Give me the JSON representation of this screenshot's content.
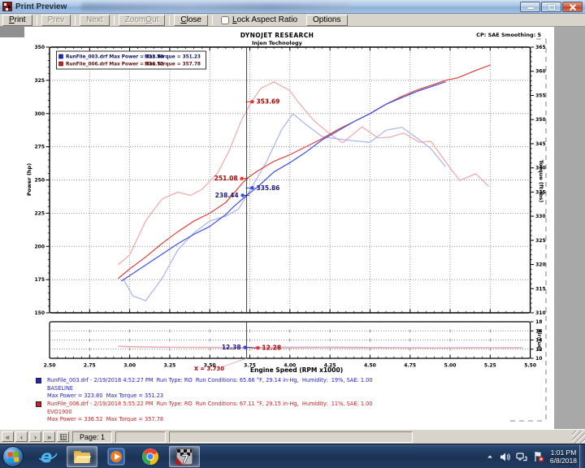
{
  "window": {
    "title": "Print Preview"
  },
  "toolbar": {
    "buttons": [
      {
        "label": "Print",
        "u": 0,
        "enabled": true
      },
      {
        "label": "Prev",
        "u": -1,
        "enabled": false
      },
      {
        "label": "Next",
        "u": -1,
        "enabled": false
      },
      {
        "label": "Zoom Out",
        "u": 5,
        "enabled": false
      },
      {
        "label": "Close",
        "u": 0,
        "enabled": true
      }
    ],
    "checkbox": {
      "label": "Lock Aspect Ratio",
      "u": 0,
      "checked": false
    },
    "options_label": "Options"
  },
  "header": {
    "brand": "DYNOJET RESEARCH",
    "subbrand": "Injen Technology",
    "note": "CP: SAE  Smoothing: 5"
  },
  "runs": [
    {
      "color": "#2222cc",
      "line1": "RunFile_003.drf - 2/19/2018 4:52:27 PM  Run Type: RO  Run Conditions: 65.66 °F, 29.14 in-Hg,  Humidity:  19%, SAE: 1.00",
      "line2": "BASELINE",
      "line3": "Max Power = 323.80  Max Torque = 351.23"
    },
    {
      "color": "#cc2020",
      "line1": "RunFile_006.drf - 2/19/2018 5:55:22 PM  Run Type: RO  Run Conditions: 67.11 °F, 29.15 in-Hg,  Humidity:  11%, SAE: 1.00",
      "line2": "EVO1900",
      "line3": "Max Power = 336.52  Max Torque = 357.78"
    }
  ],
  "statusbar": {
    "nav": [
      "«",
      "‹",
      "›",
      "»"
    ],
    "page_label": "Page: 1"
  },
  "taskbar": {
    "clock": {
      "time": "1:01 PM",
      "date": "6/8/2018"
    }
  },
  "chart_data": {
    "type": "line",
    "title": "DYNOJET RESEARCH",
    "subtitle": "Injen Technology",
    "corner_note": "CP: SAE  Smoothing: 5",
    "xlabel": "Engine Speed (RPM x1000)",
    "xlim": [
      2.5,
      5.5
    ],
    "x_tick_step": 0.25,
    "power_axis": {
      "label": "Power (hp)",
      "lim": [
        150,
        350
      ],
      "tick_step": 25
    },
    "torque_axis": {
      "label": "Torque (ft-lbs)",
      "lim": [
        310,
        365
      ],
      "tick_step": 5
    },
    "afr_axis": {
      "label": "Air/Fuel",
      "lim": [
        10,
        18
      ],
      "tick_step": 2
    },
    "grid": true,
    "legend_position": "top-left",
    "legend": [
      {
        "color": "#2222cc",
        "file": "RunFile_003.drf",
        "power_text": "Max Power = 323.80",
        "torque_text": "Max Torque = 351.23",
        "text_color": "#101060"
      },
      {
        "color": "#cc2020",
        "file": "RunFile_006.drf",
        "power_text": "Max Power = 336.52",
        "torque_text": "Max Torque = 357.78",
        "text_color": "#601010"
      }
    ],
    "cursor": {
      "x": 3.73,
      "label": "X = 3.730"
    },
    "series": [
      {
        "name": "runfile006-torque",
        "axis": "torque",
        "color": "#f2a6a6",
        "points": [
          [
            2.93,
            320
          ],
          [
            3.0,
            322
          ],
          [
            3.1,
            329
          ],
          [
            3.2,
            333.5
          ],
          [
            3.3,
            335
          ],
          [
            3.38,
            334.3
          ],
          [
            3.45,
            335.5
          ],
          [
            3.55,
            339
          ],
          [
            3.62,
            343.5
          ],
          [
            3.7,
            350
          ],
          [
            3.76,
            353.7
          ],
          [
            3.82,
            356.5
          ],
          [
            3.9,
            357.8
          ],
          [
            4.0,
            356
          ],
          [
            4.05,
            353.7
          ],
          [
            4.15,
            349.8
          ],
          [
            4.25,
            347
          ],
          [
            4.33,
            345.2
          ],
          [
            4.45,
            348.5
          ],
          [
            4.55,
            346.2
          ],
          [
            4.63,
            346.4
          ],
          [
            4.71,
            347.2
          ],
          [
            4.81,
            345.3
          ],
          [
            4.88,
            345.5
          ],
          [
            5.0,
            340
          ],
          [
            5.06,
            337.4
          ],
          [
            5.16,
            338.8
          ],
          [
            5.24,
            336.2
          ]
        ]
      },
      {
        "name": "runfile003-torque",
        "axis": "torque",
        "color": "#a8b2f2",
        "points": [
          [
            2.96,
            317
          ],
          [
            3.02,
            313.5
          ],
          [
            3.1,
            312.5
          ],
          [
            3.2,
            317
          ],
          [
            3.3,
            323
          ],
          [
            3.4,
            326.5
          ],
          [
            3.5,
            329
          ],
          [
            3.6,
            330
          ],
          [
            3.68,
            331.5
          ],
          [
            3.76,
            335.9
          ],
          [
            3.85,
            341
          ],
          [
            3.95,
            348
          ],
          [
            4.02,
            351.2
          ],
          [
            4.1,
            349
          ],
          [
            4.2,
            346.5
          ],
          [
            4.3,
            346
          ],
          [
            4.4,
            345.6
          ],
          [
            4.5,
            345.3
          ],
          [
            4.6,
            347.8
          ],
          [
            4.7,
            348.4
          ],
          [
            4.8,
            346
          ],
          [
            4.88,
            344
          ],
          [
            4.97,
            340.3
          ]
        ]
      },
      {
        "name": "runfile006-power",
        "axis": "power",
        "color": "#e03c3c",
        "points": [
          [
            2.93,
            176
          ],
          [
            3.0,
            183
          ],
          [
            3.1,
            192
          ],
          [
            3.2,
            202
          ],
          [
            3.3,
            211
          ],
          [
            3.4,
            219
          ],
          [
            3.5,
            225
          ],
          [
            3.6,
            233
          ],
          [
            3.7,
            247
          ],
          [
            3.73,
            251.1
          ],
          [
            3.8,
            257
          ],
          [
            3.9,
            264
          ],
          [
            4.0,
            269
          ],
          [
            4.1,
            275
          ],
          [
            4.2,
            281
          ],
          [
            4.3,
            288
          ],
          [
            4.4,
            294
          ],
          [
            4.5,
            300
          ],
          [
            4.6,
            307
          ],
          [
            4.7,
            313
          ],
          [
            4.8,
            318
          ],
          [
            4.9,
            322
          ],
          [
            4.97,
            325
          ],
          [
            5.05,
            327
          ],
          [
            5.15,
            332
          ],
          [
            5.25,
            336.5
          ]
        ]
      },
      {
        "name": "runfile003-power",
        "axis": "power",
        "color": "#3c50e0",
        "points": [
          [
            2.95,
            174
          ],
          [
            3.0,
            178
          ],
          [
            3.1,
            186
          ],
          [
            3.2,
            194
          ],
          [
            3.3,
            202
          ],
          [
            3.4,
            209
          ],
          [
            3.5,
            215
          ],
          [
            3.6,
            224
          ],
          [
            3.65,
            230
          ],
          [
            3.73,
            238.4
          ],
          [
            3.8,
            245
          ],
          [
            3.9,
            256
          ],
          [
            4.0,
            263
          ],
          [
            4.1,
            271
          ],
          [
            4.2,
            280
          ],
          [
            4.3,
            287
          ],
          [
            4.4,
            294
          ],
          [
            4.5,
            300
          ],
          [
            4.6,
            307
          ],
          [
            4.7,
            312
          ],
          [
            4.8,
            317
          ],
          [
            4.9,
            321
          ],
          [
            4.97,
            323.8
          ]
        ]
      },
      {
        "name": "runfile003-afr",
        "axis": "afr",
        "color": "#a8b2f2",
        "points": [
          [
            2.95,
            12.55
          ],
          [
            3.1,
            12.45
          ],
          [
            3.3,
            12.42
          ],
          [
            3.5,
            12.42
          ],
          [
            3.72,
            12.38
          ],
          [
            3.9,
            12.42
          ],
          [
            4.1,
            12.45
          ],
          [
            4.3,
            12.45
          ],
          [
            4.5,
            12.4
          ],
          [
            4.7,
            12.35
          ],
          [
            4.9,
            12.3
          ],
          [
            5.1,
            12.35
          ],
          [
            5.3,
            12.35
          ],
          [
            5.45,
            12.35
          ]
        ]
      },
      {
        "name": "runfile006-afr",
        "axis": "afr",
        "color": "#f2a6a6",
        "points": [
          [
            2.93,
            12.65
          ],
          [
            3.1,
            12.5
          ],
          [
            3.3,
            12.4
          ],
          [
            3.5,
            12.35
          ],
          [
            3.8,
            12.28
          ],
          [
            4.0,
            12.3
          ],
          [
            4.2,
            12.33
          ],
          [
            4.4,
            12.3
          ],
          [
            4.6,
            12.28
          ],
          [
            4.8,
            12.25
          ],
          [
            5.0,
            12.25
          ],
          [
            5.2,
            12.28
          ],
          [
            5.45,
            12.28
          ]
        ]
      }
    ],
    "callouts": [
      {
        "axis": "torque",
        "x": 3.765,
        "value": 353.69,
        "label": "353.69",
        "color": "#aa0000",
        "dot": "#ee3030",
        "side": "right"
      },
      {
        "axis": "power",
        "x": 3.7,
        "value": 251.08,
        "label": "251.08",
        "color": "#aa0000",
        "dot": "#ee3030",
        "side": "left"
      },
      {
        "axis": "torque",
        "x": 3.765,
        "value": 335.86,
        "label": "335.86",
        "color": "#1a1a80",
        "dot": "#3048e8",
        "side": "right"
      },
      {
        "axis": "power",
        "x": 3.705,
        "value": 238.44,
        "label": "238.44",
        "color": "#1a1a80",
        "dot": "#3048e8",
        "side": "left"
      },
      {
        "axis": "afr",
        "x": 3.72,
        "value": 12.38,
        "label": "12.38",
        "color": "#1a1a80",
        "dot": "#3048e8",
        "side": "left"
      },
      {
        "axis": "afr",
        "x": 3.8,
        "value": 12.28,
        "label": "12.28",
        "color": "#aa0000",
        "dot": "#ee3030",
        "side": "right"
      }
    ]
  }
}
